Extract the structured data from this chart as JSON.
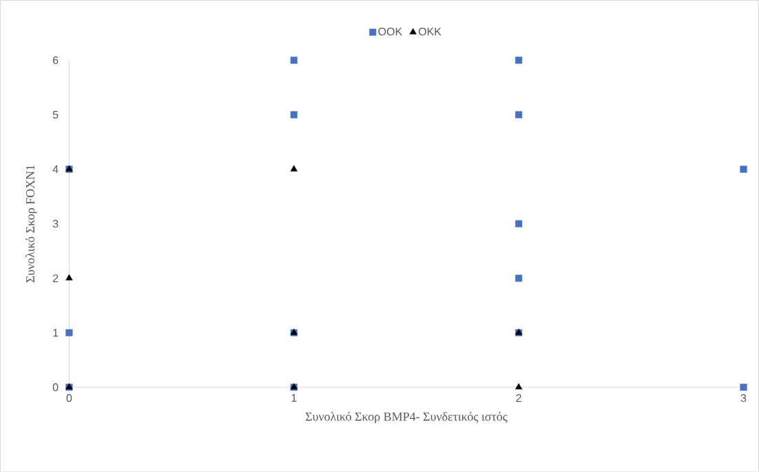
{
  "chart_data": {
    "type": "scatter",
    "xlabel": "Συνολικό Σκορ BMP4- Συνδετικός ιστός",
    "ylabel": "Συνολικό Σκορ FOXN1",
    "xlim": [
      0,
      3
    ],
    "ylim": [
      0,
      6
    ],
    "xticks": [
      0,
      1,
      2,
      3
    ],
    "yticks": [
      0,
      1,
      2,
      3,
      4,
      5,
      6
    ],
    "grid": false,
    "legend": "top",
    "series": [
      {
        "name": "ΟΟΚ",
        "color": "#4472c4",
        "marker": "square",
        "x": [
          0,
          0,
          0,
          1,
          1,
          1,
          1,
          2,
          2,
          2,
          2,
          2,
          3,
          3
        ],
        "values": [
          4,
          1,
          0,
          6,
          5,
          1,
          0,
          6,
          5,
          3,
          2,
          1,
          4,
          0
        ]
      },
      {
        "name": "ΟΚΚ",
        "color": "#000000",
        "marker": "triangle",
        "x": [
          0,
          0,
          0,
          1,
          1,
          1,
          2,
          2
        ],
        "values": [
          4,
          2,
          0,
          4,
          1,
          0,
          1,
          0
        ]
      }
    ]
  }
}
